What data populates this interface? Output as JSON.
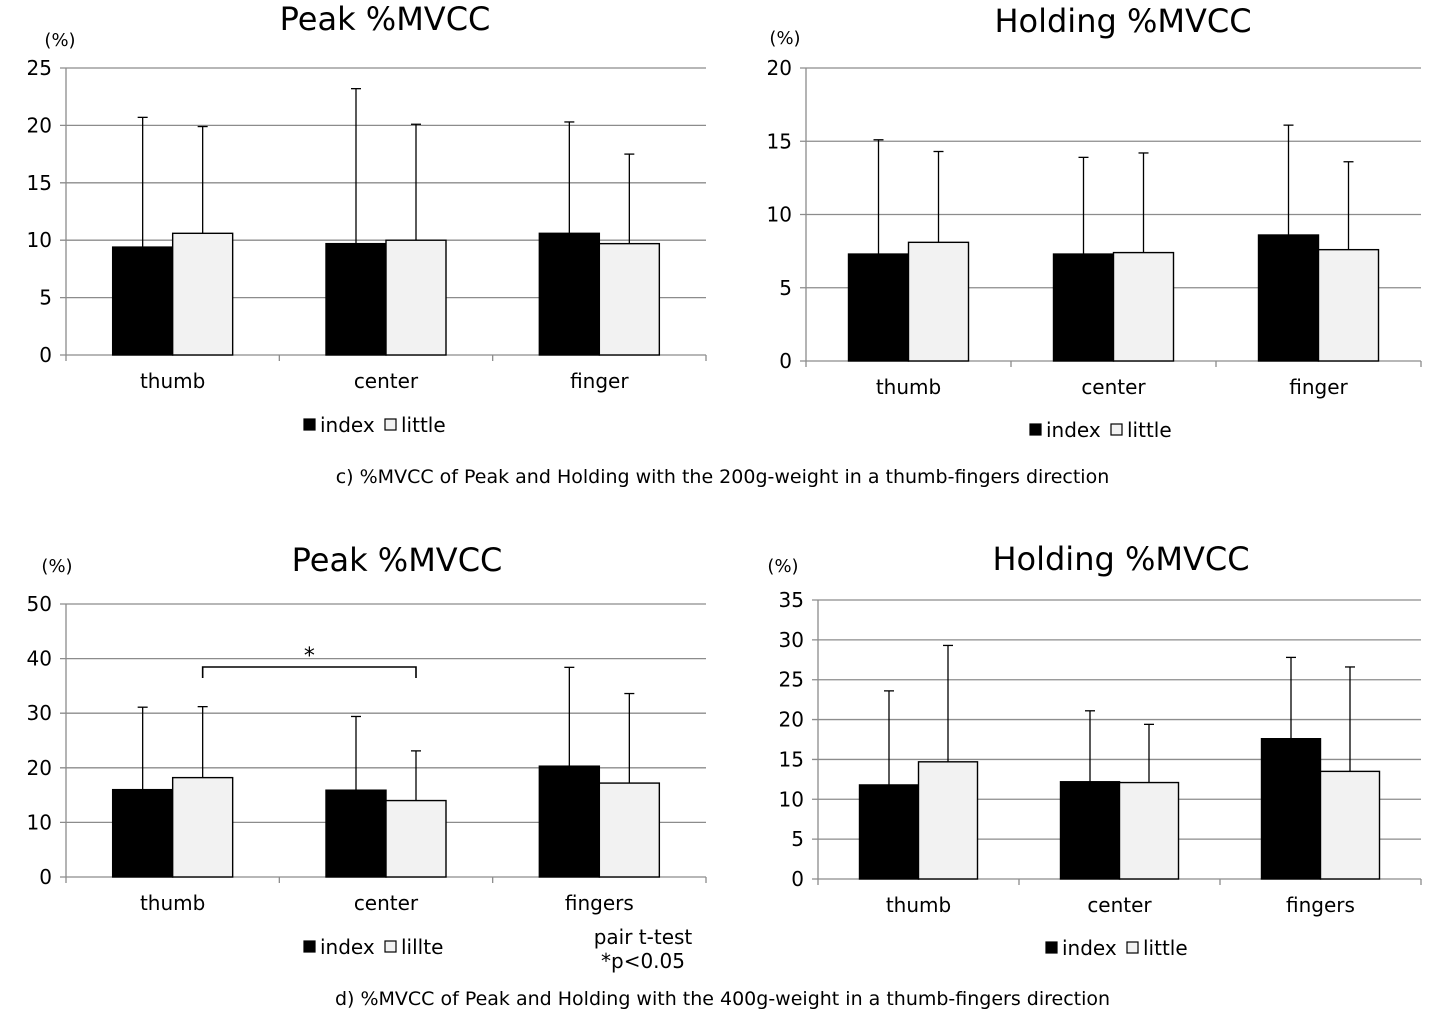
{
  "captions": {
    "c": "c) %MVCC of Peak and Holding with the 200g-weight in a thumb-fingers direction",
    "d": "d) %MVCC of Peak and Holding with the 400g-weight in a thumb-fingers direction"
  },
  "colors": {
    "index": "#000000",
    "little": "#f2f2f2",
    "grid": "#8c8c8c",
    "bar_outline": "#000000"
  },
  "chart_data": [
    {
      "type": "bar",
      "title": "Peak %MVCC",
      "ylabel": "(%)",
      "ylim": [
        0,
        25
      ],
      "yticks": [
        0,
        5,
        10,
        15,
        20,
        25
      ],
      "grid": true,
      "legend_position": "bottom",
      "categories": [
        "thumb",
        "center",
        "finger"
      ],
      "series": [
        {
          "name": "index",
          "values": [
            9.4,
            9.7,
            10.6
          ],
          "error": [
            11.3,
            13.5,
            9.7
          ]
        },
        {
          "name": "little",
          "values": [
            10.6,
            10.0,
            9.7
          ],
          "error": [
            9.3,
            10.1,
            7.8
          ]
        }
      ]
    },
    {
      "type": "bar",
      "title": "Holding %MVCC",
      "ylabel": "(%)",
      "ylim": [
        0,
        20
      ],
      "yticks": [
        0,
        5,
        10,
        15,
        20
      ],
      "grid": true,
      "legend_position": "bottom",
      "categories": [
        "thumb",
        "center",
        "finger"
      ],
      "series": [
        {
          "name": "index",
          "values": [
            7.3,
            7.3,
            8.6
          ],
          "error": [
            7.8,
            6.6,
            7.5
          ]
        },
        {
          "name": "little",
          "values": [
            8.1,
            7.4,
            7.6
          ],
          "error": [
            6.2,
            6.8,
            6.0
          ]
        }
      ]
    },
    {
      "type": "bar",
      "title": "Peak %MVCC",
      "ylabel": "(%)",
      "ylim": [
        0,
        50
      ],
      "yticks": [
        0,
        10,
        20,
        30,
        40,
        50
      ],
      "grid": true,
      "legend_position": "bottom",
      "categories": [
        "thumb",
        "center",
        "fingers"
      ],
      "series": [
        {
          "name": "index",
          "values": [
            16.0,
            15.9,
            20.3
          ],
          "error": [
            15.1,
            13.5,
            18.1
          ]
        },
        {
          "name": "lillte",
          "values": [
            18.2,
            14.0,
            17.2
          ],
          "error": [
            13.0,
            9.1,
            16.4
          ]
        }
      ],
      "significance": {
        "from_category": 0,
        "to_category": 1,
        "label": "*"
      },
      "note": [
        "pair t-test",
        "*p<0.05"
      ]
    },
    {
      "type": "bar",
      "title": "Holding %MVCC",
      "ylabel": "(%)",
      "ylim": [
        0,
        35
      ],
      "yticks": [
        0,
        5,
        10,
        15,
        20,
        25,
        30,
        35
      ],
      "grid": true,
      "legend_position": "bottom",
      "categories": [
        "thumb",
        "center",
        "fingers"
      ],
      "series": [
        {
          "name": "index",
          "values": [
            11.8,
            12.2,
            17.6
          ],
          "error": [
            11.8,
            8.9,
            10.2
          ]
        },
        {
          "name": "little",
          "values": [
            14.7,
            12.1,
            13.5
          ],
          "error": [
            14.6,
            7.3,
            13.1
          ]
        }
      ]
    }
  ]
}
